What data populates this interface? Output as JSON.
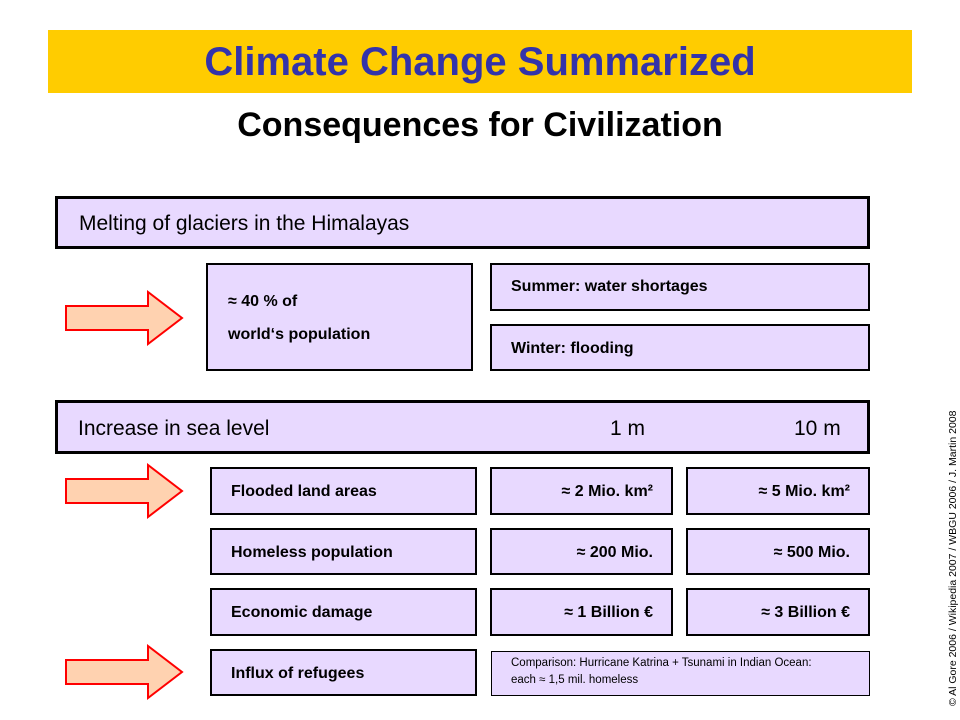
{
  "title": "Climate Change Summarized",
  "subtitle": "Consequences for Civilization",
  "himalaya": {
    "heading": "Melting of glaciers in the Himalayas",
    "population_line1": "≈ 40 % of",
    "population_line2": "world‘s population",
    "summer": "Summer:  water shortages",
    "winter": "Winter:  flooding"
  },
  "sea_level": {
    "heading": "Increase in sea level",
    "col1": "1 m",
    "col2": "10 m",
    "rows": [
      {
        "label": "Flooded land areas",
        "v1": "≈ 2 Mio. km²",
        "v2": "≈ 5 Mio. km²"
      },
      {
        "label": "Homeless population",
        "v1": "≈ 200 Mio.",
        "v2": "≈ 500 Mio."
      },
      {
        "label": "Economic damage",
        "v1": "≈ 1 Billion €",
        "v2": "≈ 3 Billion €"
      }
    ],
    "refugees": "Influx of refugees",
    "comparison_line1": "Comparison: Hurricane Katrina + Tsunami in Indian Ocean:",
    "comparison_line2": "each ≈ 1,5 mil. homeless"
  },
  "credit": "© Al Gore 2006  /  Wikipedia 2007  /  WBGU 2006  /  J. Martin 2008",
  "colors": {
    "title_bar": "#ffcc00",
    "title_text": "#3333aa",
    "box_fill": "#e8d9ff",
    "arrow_fill": "#ffd2b0",
    "arrow_stroke": "#ff0000"
  },
  "icons": [
    "right-arrow-icon"
  ]
}
